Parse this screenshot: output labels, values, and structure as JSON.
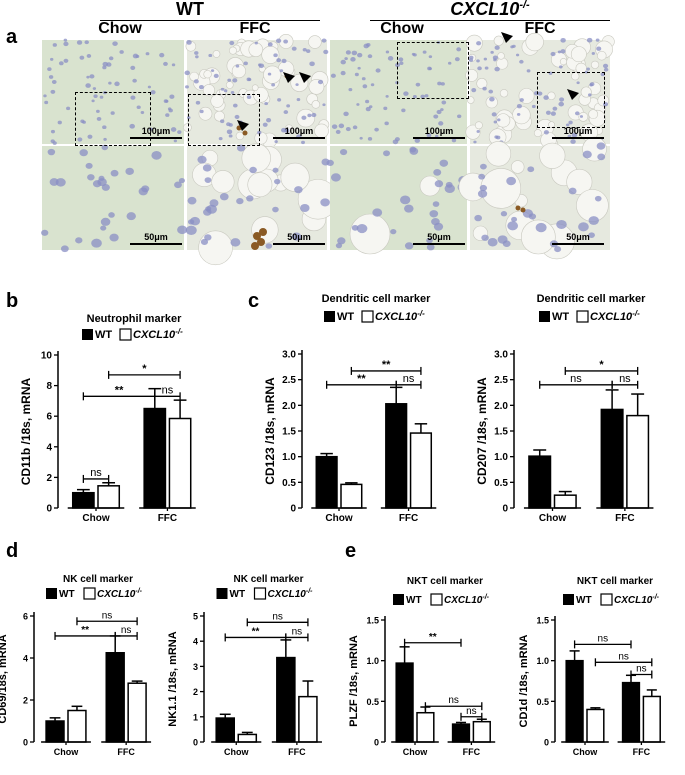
{
  "figure": {
    "panel_labels": [
      "a",
      "b",
      "c",
      "d",
      "e"
    ],
    "group_headers": {
      "wt": "WT",
      "ko_prefix": "CXCL10",
      "ko_suffix": "-/-"
    },
    "micro_columns": [
      "Chow",
      "FFC",
      "Chow",
      "FFC"
    ],
    "scalebar_top": "100μm",
    "scalebar_bottom": "50μm"
  },
  "legend": {
    "wt": "WT",
    "ko_prefix": "CXCL10",
    "ko_suffix": "-/-"
  },
  "chart_data": [
    {
      "id": "b",
      "type": "bar",
      "title": "Neutrophil marker",
      "ylabel": "CD11b /18s, mRNA",
      "categories": [
        "Chow",
        "FFC"
      ],
      "ylim": [
        0,
        10
      ],
      "yticks": [
        0,
        2,
        4,
        6,
        8,
        10
      ],
      "series": [
        {
          "name": "WT",
          "values": [
            1.0,
            6.5
          ],
          "err": [
            0.2,
            1.3
          ]
        },
        {
          "name": "CXCL10-/-",
          "values": [
            1.45,
            5.85
          ],
          "err": [
            0.2,
            1.2
          ]
        }
      ],
      "annotations": [
        {
          "a": 0,
          "b": 1,
          "label": "ns",
          "y": 1.9
        },
        {
          "a": 0,
          "b": 2,
          "label": "**",
          "y": 7.3
        },
        {
          "a": 1,
          "b": 3,
          "label": "*",
          "y": 8.7
        },
        {
          "a": 2,
          "b": 3,
          "label": "ns",
          "y": 7.3
        }
      ]
    },
    {
      "id": "c1",
      "type": "bar",
      "title": "Dendritic cell marker",
      "ylabel": "CD123 /18s, mRNA",
      "categories": [
        "Chow",
        "FFC"
      ],
      "ylim": [
        0,
        3.0
      ],
      "yticks": [
        0,
        0.5,
        1.0,
        1.5,
        2.0,
        2.5,
        3.0
      ],
      "series": [
        {
          "name": "WT",
          "values": [
            1.0,
            2.03
          ],
          "err": [
            0.06,
            0.32
          ]
        },
        {
          "name": "CXCL10-/-",
          "values": [
            0.46,
            1.46
          ],
          "err": [
            0.03,
            0.18
          ]
        }
      ],
      "annotations": [
        {
          "a": 0,
          "b": 2,
          "label": "**",
          "y": 2.4
        },
        {
          "a": 1,
          "b": 3,
          "label": "**",
          "y": 2.67
        },
        {
          "a": 2,
          "b": 3,
          "label": "ns",
          "y": 2.4
        }
      ]
    },
    {
      "id": "c2",
      "type": "bar",
      "title": "Dendritic cell marker",
      "ylabel": "CD207 /18s, mRNA",
      "categories": [
        "Chow",
        "FFC"
      ],
      "ylim": [
        0,
        3.0
      ],
      "yticks": [
        0,
        0.5,
        1.0,
        1.5,
        2.0,
        2.5,
        3.0
      ],
      "series": [
        {
          "name": "WT",
          "values": [
            1.01,
            1.92
          ],
          "err": [
            0.12,
            0.38
          ]
        },
        {
          "name": "CXCL10-/-",
          "values": [
            0.25,
            1.8
          ],
          "err": [
            0.07,
            0.42
          ]
        }
      ],
      "annotations": [
        {
          "a": 0,
          "b": 2,
          "label": "ns",
          "y": 2.4
        },
        {
          "a": 1,
          "b": 3,
          "label": "*",
          "y": 2.67
        },
        {
          "a": 2,
          "b": 3,
          "label": "ns",
          "y": 2.4
        }
      ]
    },
    {
      "id": "d1",
      "type": "bar",
      "title": "NK cell marker",
      "ylabel": "CD69/18s, mRNA",
      "categories": [
        "Chow",
        "FFC"
      ],
      "ylim": [
        0,
        6
      ],
      "yticks": [
        0,
        2,
        4,
        6
      ],
      "series": [
        {
          "name": "WT",
          "values": [
            1.0,
            4.25
          ],
          "err": [
            0.15,
            0.8
          ]
        },
        {
          "name": "CXCL10-/-",
          "values": [
            1.5,
            2.8
          ],
          "err": [
            0.2,
            0.1
          ]
        }
      ],
      "annotations": [
        {
          "a": 0,
          "b": 2,
          "label": "**",
          "y": 5.05
        },
        {
          "a": 1,
          "b": 3,
          "label": "ns",
          "y": 5.75
        },
        {
          "a": 2,
          "b": 3,
          "label": "ns",
          "y": 5.05
        }
      ]
    },
    {
      "id": "d2",
      "type": "bar",
      "title": "NK cell marker",
      "ylabel": "NK1.1 /18s, mRNA",
      "categories": [
        "Chow",
        "FFC"
      ],
      "ylim": [
        0,
        5
      ],
      "yticks": [
        0,
        1,
        2,
        3,
        4,
        5
      ],
      "series": [
        {
          "name": "WT",
          "values": [
            0.95,
            3.35
          ],
          "err": [
            0.15,
            0.7
          ]
        },
        {
          "name": "CXCL10-/-",
          "values": [
            0.3,
            1.8
          ],
          "err": [
            0.08,
            0.62
          ]
        }
      ],
      "annotations": [
        {
          "a": 0,
          "b": 2,
          "label": "**",
          "y": 4.15
        },
        {
          "a": 1,
          "b": 3,
          "label": "ns",
          "y": 4.75
        },
        {
          "a": 2,
          "b": 3,
          "label": "ns",
          "y": 4.15
        }
      ]
    },
    {
      "id": "e1",
      "type": "bar",
      "title": "NKT cell marker",
      "ylabel": "PLZF /18s, mRNA",
      "categories": [
        "Chow",
        "FFC"
      ],
      "ylim": [
        0,
        1.5
      ],
      "yticks": [
        0,
        0.5,
        1.0,
        1.5
      ],
      "series": [
        {
          "name": "WT",
          "values": [
            0.97,
            0.22
          ],
          "err": [
            0.2,
            0.02
          ]
        },
        {
          "name": "CXCL10-/-",
          "values": [
            0.36,
            0.25
          ],
          "err": [
            0.07,
            0.03
          ]
        }
      ],
      "annotations": [
        {
          "a": 0,
          "b": 2,
          "label": "**",
          "y": 1.22
        },
        {
          "a": 1,
          "b": 3,
          "label": "ns",
          "y": 0.44
        },
        {
          "a": 2,
          "b": 3,
          "label": "ns",
          "y": 0.31
        }
      ]
    },
    {
      "id": "e2",
      "type": "bar",
      "title": "NKT cell marker",
      "ylabel": "CD1d /18s, mRNA",
      "categories": [
        "Chow",
        "FFC"
      ],
      "ylim": [
        0,
        1.5
      ],
      "yticks": [
        0,
        0.5,
        1.0,
        1.5
      ],
      "series": [
        {
          "name": "WT",
          "values": [
            1.0,
            0.73
          ],
          "err": [
            0.12,
            0.09
          ]
        },
        {
          "name": "CXCL10-/-",
          "values": [
            0.4,
            0.56
          ],
          "err": [
            0.02,
            0.08
          ]
        }
      ],
      "annotations": [
        {
          "a": 0,
          "b": 2,
          "label": "ns",
          "y": 1.2
        },
        {
          "a": 1,
          "b": 3,
          "label": "ns",
          "y": 0.98
        },
        {
          "a": 2,
          "b": 3,
          "label": "ns",
          "y": 0.83
        }
      ]
    }
  ]
}
